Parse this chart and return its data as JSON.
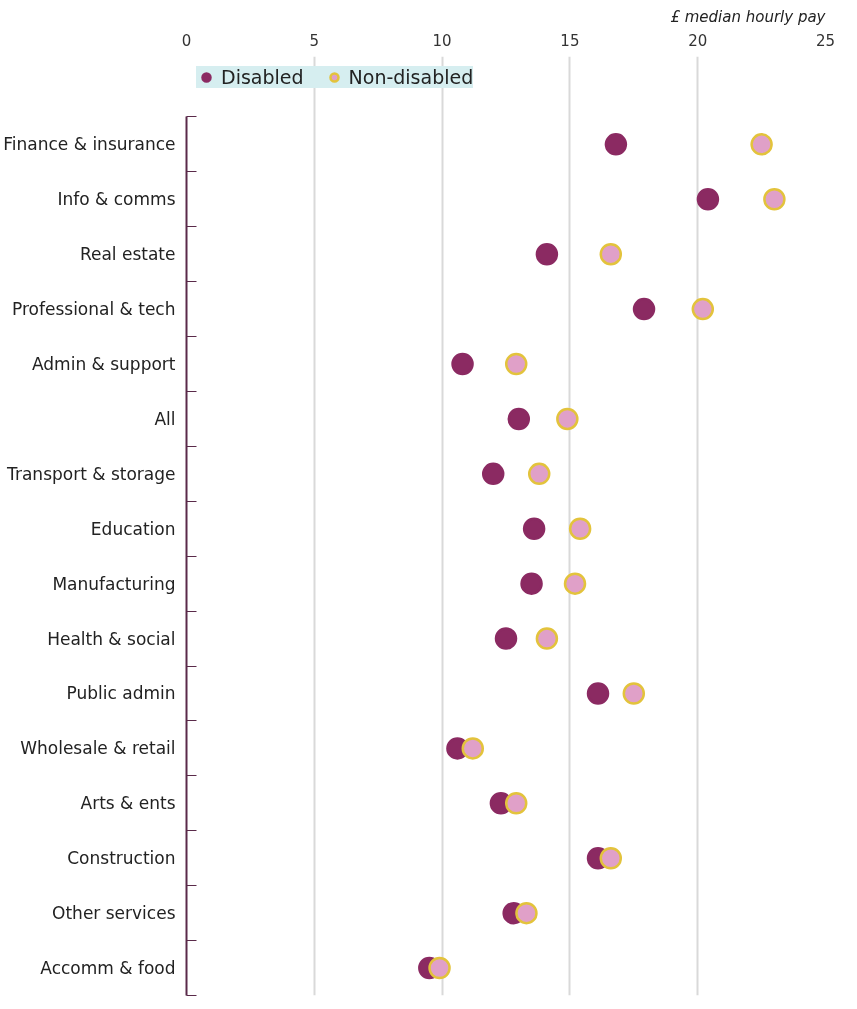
{
  "chart_data": {
    "type": "scatter",
    "xlabel": "£ median hourly pay",
    "categories": [
      "Finance & insurance",
      "Info & comms",
      "Real estate",
      "Professional & tech",
      "Admin & support",
      "All",
      "Transport & storage",
      "Education",
      "Manufacturing",
      "Health & social",
      "Public admin",
      "Wholesale & retail",
      "Arts & ents",
      "Construction",
      "Other services",
      "Accomm & food"
    ],
    "series": [
      {
        "name": "Disabled",
        "color": "#8b2a62",
        "values": [
          16.8,
          20.4,
          14.1,
          17.9,
          10.8,
          13.0,
          12.0,
          13.6,
          13.5,
          12.5,
          16.1,
          10.6,
          12.3,
          16.1,
          12.8,
          9.5
        ]
      },
      {
        "name": "Non-disabled",
        "color": "#e0a0c8",
        "values": [
          22.5,
          23.0,
          16.6,
          20.2,
          12.9,
          14.9,
          13.8,
          15.4,
          15.2,
          14.1,
          17.5,
          11.2,
          12.9,
          16.6,
          13.3,
          9.9
        ]
      }
    ],
    "orientation": "horizontal",
    "xlim": [
      0,
      25
    ],
    "xticks": [
      0,
      5,
      10,
      15,
      20,
      25
    ],
    "grid": "x",
    "legend": "top left",
    "marker": "circle"
  }
}
